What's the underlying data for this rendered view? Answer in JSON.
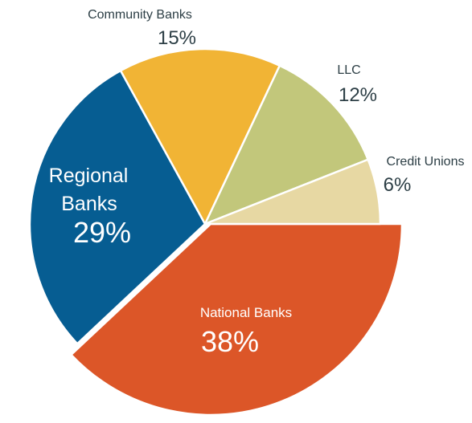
{
  "chart_data": {
    "type": "pie",
    "title": "",
    "legend": "none",
    "slices": [
      {
        "label": "National Banks",
        "value": 38,
        "value_label": "38%",
        "color": "#dc5628"
      },
      {
        "label": "Regional Banks",
        "value": 29,
        "value_label": "29%",
        "color": "#065d92"
      },
      {
        "label": "Community Banks",
        "value": 15,
        "value_label": "15%",
        "color": "#f1b435"
      },
      {
        "label": "LLC",
        "value": 12,
        "value_label": "12%",
        "color": "#c2c77b"
      },
      {
        "label": "Credit Unions",
        "value": 6,
        "value_label": "6%",
        "color": "#e7d8a3"
      }
    ],
    "exploded_slice": "National Banks"
  }
}
